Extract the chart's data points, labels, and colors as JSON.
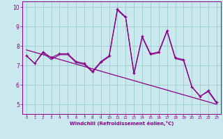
{
  "xlabel": "Windchill (Refroidissement éolien,°C)",
  "xlim": [
    -0.5,
    23.5
  ],
  "ylim": [
    4.5,
    10.3
  ],
  "xticks": [
    0,
    1,
    2,
    3,
    4,
    5,
    6,
    7,
    8,
    9,
    10,
    11,
    12,
    13,
    14,
    15,
    16,
    17,
    18,
    19,
    20,
    21,
    22,
    23
  ],
  "yticks": [
    5,
    6,
    7,
    8,
    9,
    10
  ],
  "bg_color": "#cce8ef",
  "line_color": "#880088",
  "grid_color": "#99cccc",
  "series1_x": [
    0,
    1,
    2,
    3,
    4,
    5,
    6,
    7,
    8,
    9,
    10,
    11,
    12,
    13,
    14,
    15,
    16,
    17,
    18,
    19,
    20,
    21,
    22,
    23
  ],
  "series1_y": [
    7.5,
    7.1,
    7.7,
    7.4,
    7.6,
    7.6,
    7.2,
    7.1,
    6.7,
    7.2,
    7.5,
    9.9,
    9.5,
    6.6,
    8.5,
    7.6,
    7.7,
    8.8,
    7.4,
    7.3,
    5.9,
    5.4,
    5.7,
    5.1
  ],
  "series2_x": [
    0,
    23
  ],
  "series2_y": [
    7.8,
    5.0
  ],
  "series3_x": [
    0,
    1,
    2,
    3,
    4,
    5,
    6,
    7,
    8,
    9,
    10,
    11,
    12,
    13,
    14,
    15,
    16,
    17,
    18,
    19,
    20,
    21,
    22,
    23
  ],
  "series3_y": [
    7.5,
    7.1,
    7.65,
    7.3,
    7.55,
    7.55,
    7.15,
    7.05,
    6.65,
    7.15,
    7.45,
    9.85,
    9.45,
    6.55,
    8.45,
    7.55,
    7.65,
    8.75,
    7.35,
    7.25,
    5.9,
    5.42,
    5.65,
    5.05
  ]
}
